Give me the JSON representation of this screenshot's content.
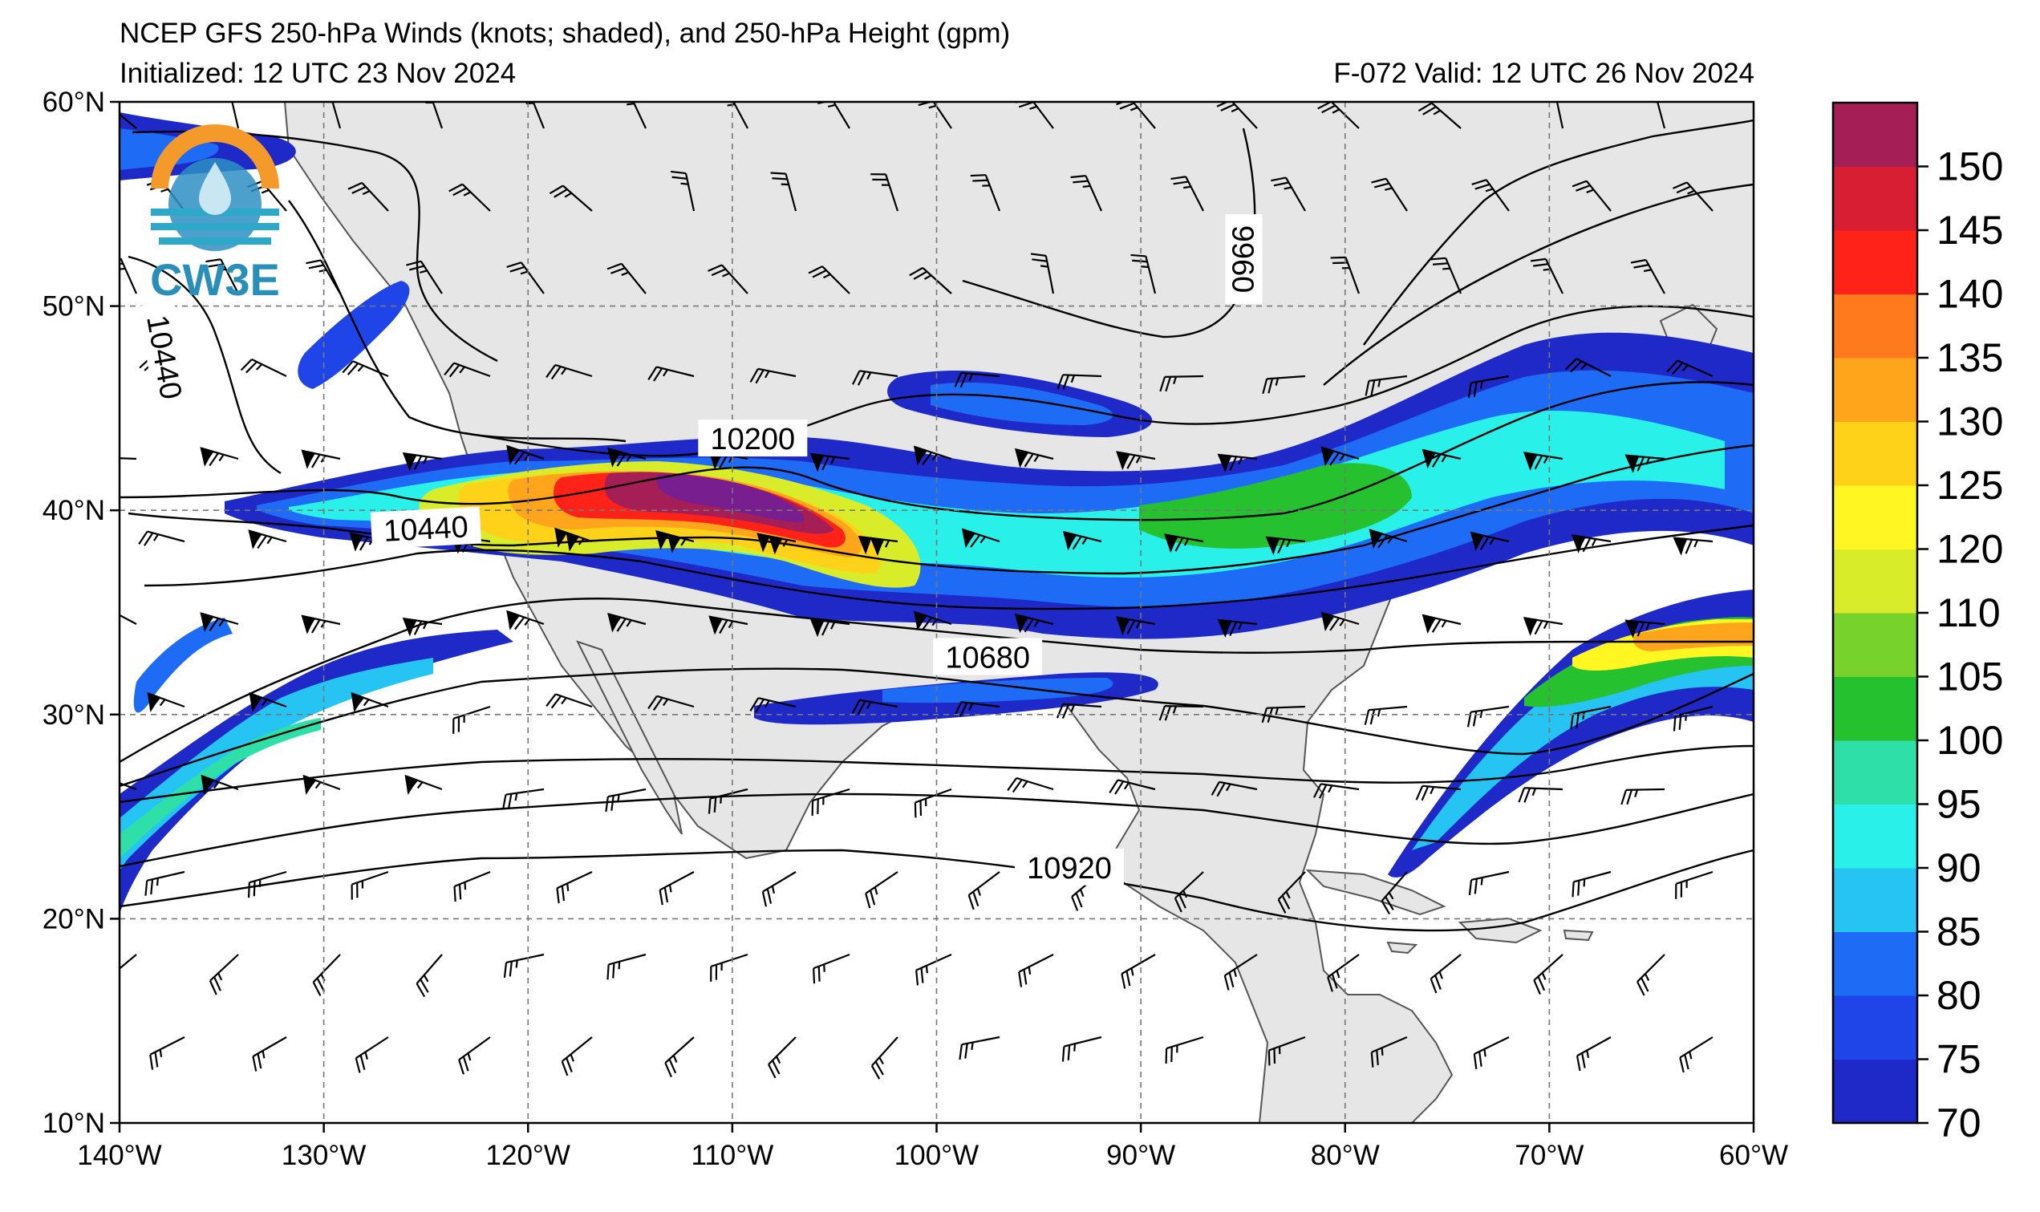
{
  "header": {
    "title": "NCEP GFS 250-hPa Winds (knots; shaded), and 250-hPa Height (gpm)",
    "initialized": "Initialized: 12 UTC 23 Nov 2024",
    "valid": "F-072  Valid: 12 UTC 26 Nov 2024"
  },
  "logo": {
    "text": "CW3E"
  },
  "map": {
    "lon_range": [
      -140,
      -60
    ],
    "lat_range": [
      10,
      60
    ],
    "lon_ticks": [
      {
        "value": -140,
        "label": "140°W"
      },
      {
        "value": -130,
        "label": "130°W"
      },
      {
        "value": -120,
        "label": "120°W"
      },
      {
        "value": -110,
        "label": "110°W"
      },
      {
        "value": -100,
        "label": "100°W"
      },
      {
        "value": -90,
        "label": "90°W"
      },
      {
        "value": -80,
        "label": "80°W"
      },
      {
        "value": -70,
        "label": "70°W"
      },
      {
        "value": -60,
        "label": "60°W"
      }
    ],
    "lat_ticks": [
      {
        "value": 60,
        "label": "60°N"
      },
      {
        "value": 50,
        "label": "50°N"
      },
      {
        "value": 40,
        "label": "40°N"
      },
      {
        "value": 30,
        "label": "30°N"
      },
      {
        "value": 20,
        "label": "20°N"
      },
      {
        "value": 10,
        "label": "10°N"
      }
    ],
    "contour_labels": [
      {
        "text": "10200",
        "lon": -109,
        "lat": 43.5,
        "rotate": 0
      },
      {
        "text": "10440",
        "lon": -125,
        "lat": 39.1,
        "rotate": -3
      },
      {
        "text": "10680",
        "lon": -97.5,
        "lat": 32.8,
        "rotate": 0
      },
      {
        "text": "10920",
        "lon": -93.5,
        "lat": 22.5,
        "rotate": 0
      },
      {
        "text": "10440",
        "lon": -137.8,
        "lat": 47.5,
        "rotate": 80
      },
      {
        "text": "9960",
        "lon": -85,
        "lat": 52.3,
        "rotate": 90
      }
    ]
  },
  "colorbar": {
    "levels": [
      70,
      75,
      80,
      85,
      90,
      95,
      100,
      105,
      110,
      120,
      125,
      130,
      135,
      140,
      145,
      150,
      155
    ],
    "colors": [
      "#1e29c8",
      "#1f45e8",
      "#1e6cf5",
      "#26c4f2",
      "#29f0e8",
      "#2ee0a8",
      "#26c12e",
      "#78d22c",
      "#d9ec2a",
      "#fff622",
      "#ffd21a",
      "#ffa51c",
      "#ff7a1c",
      "#ff2218",
      "#d81e32",
      "#a61e56",
      "#781e8e"
    ],
    "tick_labels": [
      "70",
      "75",
      "80",
      "85",
      "90",
      "95",
      "100",
      "105",
      "110",
      "120",
      "125",
      "130",
      "135",
      "140",
      "145",
      "150"
    ]
  }
}
